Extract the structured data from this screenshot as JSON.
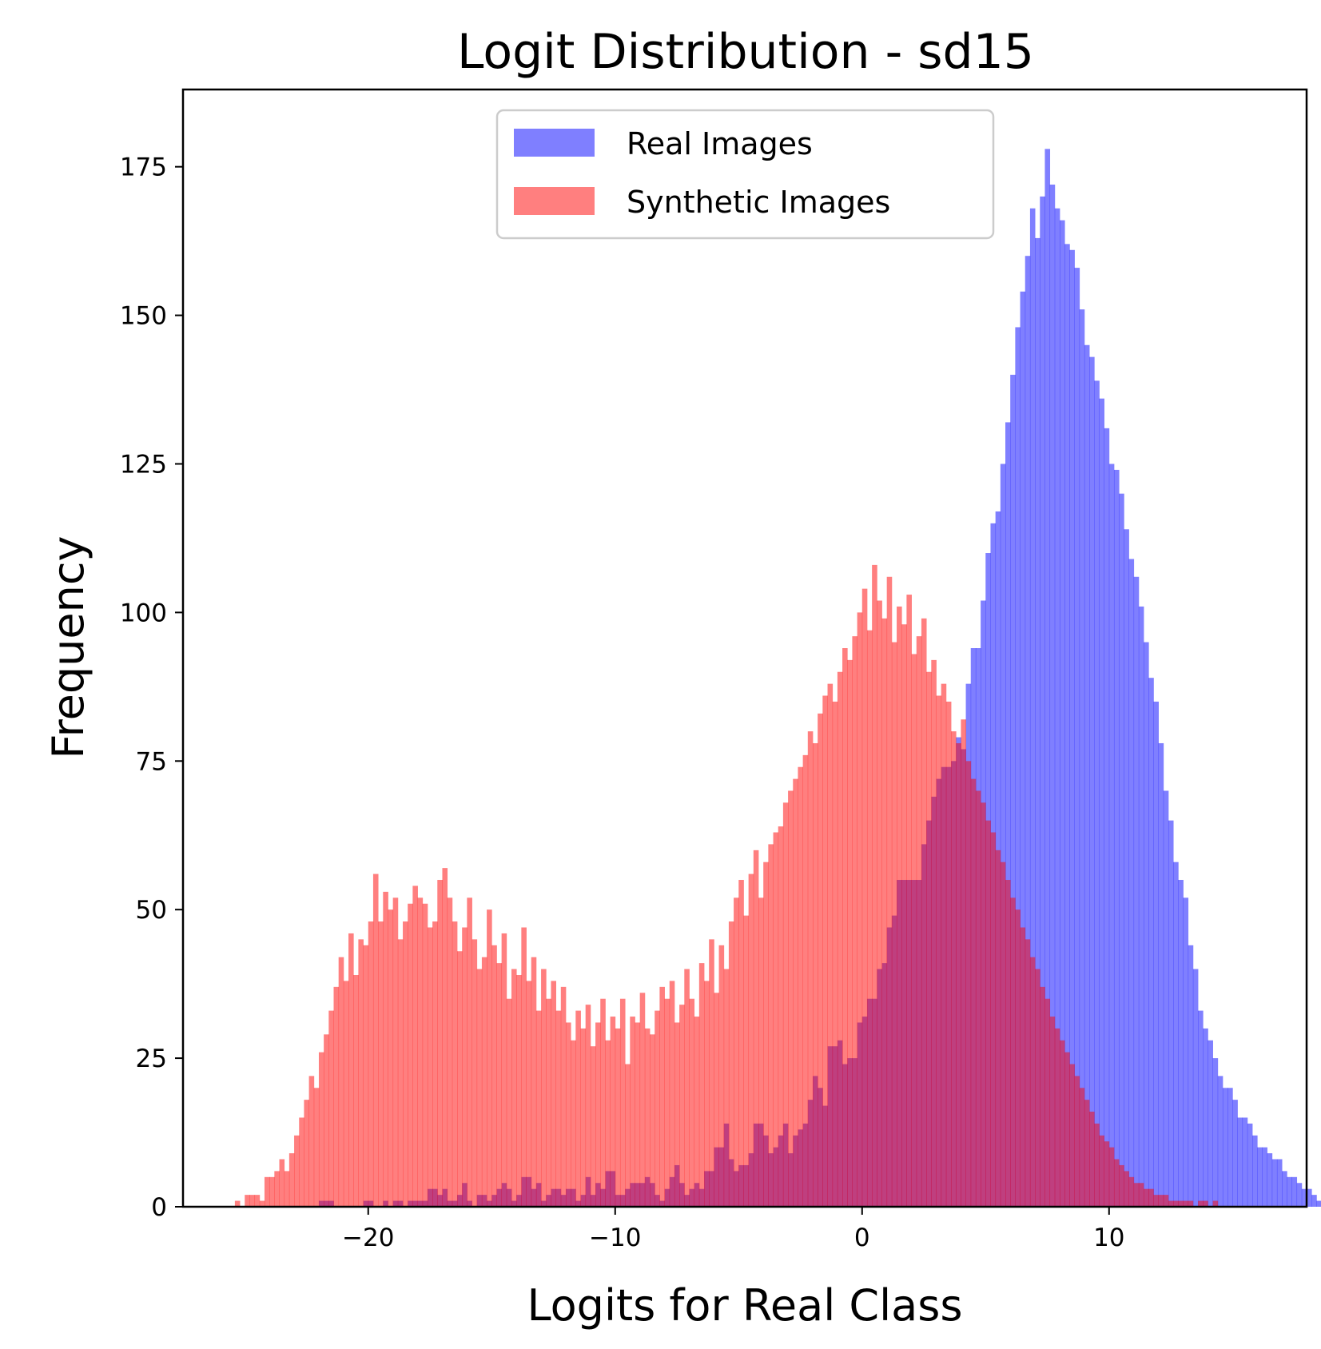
{
  "chart_data": {
    "type": "histogram",
    "title": "Logit Distribution - sd15",
    "xlabel": "Logits for Real Class",
    "ylabel": "Frequency",
    "xlim": [
      -27.5,
      18.0
    ],
    "ylim": [
      0,
      188
    ],
    "x_ticks": [
      -20,
      -10,
      0,
      10
    ],
    "x_tick_labels": [
      "−20",
      "−10",
      "0",
      "10"
    ],
    "y_ticks": [
      0,
      25,
      50,
      75,
      100,
      125,
      150,
      175
    ],
    "y_tick_labels": [
      "0",
      "25",
      "50",
      "75",
      "100",
      "125",
      "150",
      "175"
    ],
    "grid": false,
    "legend_position": "upper center",
    "bin_width": 0.2,
    "series": [
      {
        "name": "Real Images",
        "color": "#0000ff",
        "opacity": 0.5,
        "x_start": -22.0,
        "counts": [
          1,
          1,
          1,
          0,
          0,
          0,
          0,
          0,
          0,
          1,
          1,
          0,
          0,
          1,
          0,
          1,
          1,
          0,
          1,
          1,
          1,
          1,
          3,
          3,
          2,
          3,
          1,
          1,
          2,
          4,
          1,
          0,
          2,
          2,
          1,
          2,
          3,
          4,
          3,
          1,
          2,
          5,
          5,
          3,
          4,
          1,
          2,
          3,
          3,
          2,
          3,
          3,
          1,
          2,
          5,
          2,
          4,
          3,
          6,
          6,
          2,
          2,
          3,
          4,
          4,
          4,
          5,
          4,
          2,
          1,
          3,
          5,
          7,
          4,
          2,
          3,
          4,
          3,
          6,
          6,
          10,
          10,
          14,
          8,
          6,
          7,
          7,
          9,
          14,
          14,
          12,
          9,
          10,
          12,
          14,
          9,
          12,
          13,
          14,
          18,
          22,
          20,
          17,
          27,
          27,
          28,
          24,
          25,
          25,
          31,
          32,
          35,
          35,
          40,
          41,
          47,
          49,
          55,
          55,
          55,
          55,
          55,
          61,
          65,
          69,
          72,
          74,
          74,
          75,
          79,
          77,
          88,
          94,
          94,
          102,
          110,
          115,
          117,
          125,
          132,
          140,
          148,
          154,
          160,
          168,
          163,
          170,
          178,
          172,
          168,
          166,
          162,
          161,
          158,
          151,
          145,
          143,
          139,
          136,
          131,
          125,
          124,
          120,
          114,
          109,
          106,
          101,
          95,
          89,
          85,
          78,
          70,
          65,
          58,
          55,
          52,
          44,
          40,
          33,
          30,
          28,
          25,
          22,
          20,
          20,
          18,
          15,
          15,
          14,
          12,
          10,
          10,
          9,
          8,
          8,
          6,
          5,
          5,
          4,
          3,
          3,
          2,
          1,
          1,
          1,
          1,
          1,
          0,
          0,
          1,
          1,
          1,
          0,
          0,
          0,
          0,
          0,
          0,
          0,
          0,
          0,
          0,
          0,
          0,
          0,
          0,
          0,
          0,
          0,
          0,
          0,
          0,
          0,
          1
        ]
      },
      {
        "name": "Synthetic Images",
        "color": "#ff0000",
        "opacity": 0.5,
        "x_start": -25.4,
        "counts": [
          1,
          0,
          2,
          2,
          2,
          1,
          5,
          5,
          6,
          8,
          6,
          9,
          12,
          15,
          18,
          22,
          20,
          26,
          29,
          33,
          37,
          42,
          38,
          46,
          39,
          45,
          44,
          48,
          56,
          48,
          53,
          50,
          52,
          45,
          48,
          51,
          54,
          52,
          51,
          47,
          48,
          55,
          57,
          52,
          48,
          43,
          47,
          52,
          45,
          40,
          42,
          50,
          44,
          41,
          46,
          35,
          40,
          39,
          47,
          38,
          42,
          33,
          40,
          35,
          38,
          33,
          37,
          31,
          28,
          33,
          30,
          34,
          27,
          31,
          35,
          28,
          32,
          30,
          35,
          24,
          32,
          31,
          36,
          30,
          29,
          33,
          37,
          35,
          38,
          31,
          34,
          40,
          35,
          32,
          41,
          38,
          45,
          36,
          44,
          40,
          48,
          52,
          55,
          49,
          56,
          60,
          52,
          58,
          61,
          63,
          64,
          68,
          70,
          72,
          74,
          76,
          80,
          78,
          83,
          86,
          88,
          85,
          90,
          94,
          92,
          96,
          100,
          104,
          97,
          108,
          102,
          99,
          106,
          95,
          101,
          98,
          103,
          93,
          96,
          99,
          90,
          92,
          86,
          88,
          85,
          80,
          78,
          82,
          75,
          72,
          70,
          68,
          65,
          63,
          60,
          58,
          55,
          52,
          50,
          47,
          45,
          42,
          40,
          37,
          35,
          32,
          30,
          28,
          26,
          24,
          22,
          20,
          18,
          16,
          14,
          12,
          11,
          10,
          8,
          7,
          6,
          5,
          4,
          4,
          3,
          3,
          2,
          2,
          2,
          1,
          1,
          1,
          1,
          1,
          0,
          1,
          1,
          0,
          1
        ]
      }
    ]
  }
}
